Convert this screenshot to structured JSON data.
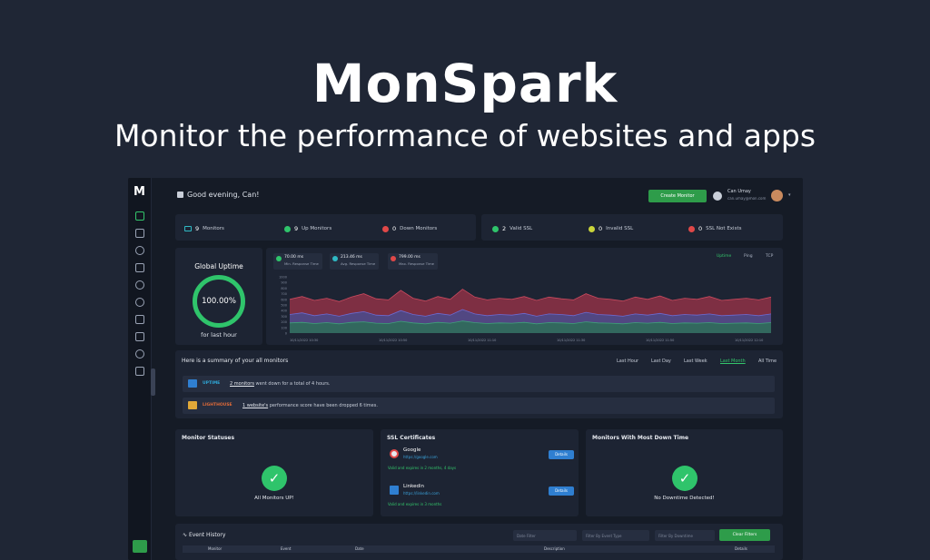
{
  "hero": {
    "title": "MonSpark",
    "subtitle": "Monitor the performance of websites and apps"
  },
  "sidebar": {
    "logo": "M",
    "icons": [
      "dashboard-icon",
      "monitor-icon",
      "signal-icon",
      "pen-icon",
      "user-icon",
      "globe-icon",
      "card-icon",
      "calendar-icon",
      "bell-icon",
      "list-icon"
    ]
  },
  "topbar": {
    "greeting": "Good evening, Can!",
    "create_button": "Create Monitor",
    "user_name": "Can Umay",
    "user_email": "can.umay@mon.com"
  },
  "stats": {
    "monitors": {
      "num": "9",
      "label": "Monitors"
    },
    "up": {
      "num": "9",
      "label": "Up Monitors"
    },
    "down": {
      "num": "0",
      "label": "Down Monitors"
    },
    "valid_ssl": {
      "num": "2",
      "label": "Valid SSL"
    },
    "invalid_ssl": {
      "num": "0",
      "label": "Invalid SSL"
    },
    "ssl_not_exists": {
      "num": "0",
      "label": "SSL Not Exists"
    }
  },
  "uptime": {
    "title": "Global Uptime",
    "value": "100.00%",
    "footer": "for last hour"
  },
  "response": {
    "min": {
      "value": "70.00 ms",
      "label": "Min. Response Time"
    },
    "avg": {
      "value": "213.46 ms",
      "label": "Avg. Response Time"
    },
    "max": {
      "value": "799.00 ms",
      "label": "Max. Response Time"
    },
    "tabs": [
      "Uptime",
      "Ping",
      "TCP"
    ]
  },
  "chart_data": {
    "type": "area",
    "series": [
      {
        "values": [
          600,
          650,
          580,
          620,
          560,
          640,
          700,
          610,
          590,
          760,
          620,
          570,
          650,
          600,
          780,
          640,
          590,
          620,
          600,
          650,
          580,
          640,
          610,
          590,
          700,
          620,
          600,
          570,
          640,
          600,
          660,
          580,
          620,
          600,
          650,
          580,
          600,
          620,
          590,
          640
        ]
      },
      {
        "values": [
          330,
          360,
          310,
          340,
          300,
          350,
          380,
          320,
          310,
          400,
          330,
          300,
          350,
          320,
          420,
          340,
          310,
          330,
          320,
          350,
          300,
          340,
          330,
          310,
          370,
          330,
          320,
          300,
          340,
          320,
          350,
          310,
          330,
          320,
          340,
          310,
          320,
          330,
          310,
          340
        ]
      },
      {
        "values": [
          180,
          190,
          170,
          185,
          165,
          190,
          200,
          175,
          170,
          210,
          180,
          165,
          190,
          175,
          215,
          185,
          170,
          180,
          175,
          190,
          165,
          185,
          180,
          170,
          200,
          180,
          175,
          165,
          185,
          175,
          190,
          170,
          180,
          175,
          185,
          170,
          175,
          180,
          170,
          185
        ]
      }
    ],
    "x_ticks": [
      "10/11/2022 10:30",
      "10/11/2022 10:50",
      "10/11/2022 11:10",
      "10/11/2022 11:30",
      "10/11/2022 11:50",
      "10/11/2022 12:10"
    ],
    "ylim": [
      0,
      1000
    ],
    "colors": [
      "#8a3145",
      "#4c4a8a",
      "#2f6b5a"
    ]
  },
  "summary": {
    "title": "Here is a summary of your all monitors",
    "tabs": [
      "Last Hour",
      "Last Day",
      "Last Week",
      "Last Month",
      "All Time"
    ],
    "uptime_row": {
      "type": "UPTIME",
      "link": "2 monitors",
      "text": " went down for a total of 4 hours."
    },
    "lighthouse_row": {
      "type": "LIGHTHOUSE",
      "link": "1 website's",
      "text": " performance score have been dropped 6 times."
    }
  },
  "monitor_statuses": {
    "title": "Monitor Statuses",
    "label": "All Monitors UP!"
  },
  "ssl": {
    "title": "SSL Certificates",
    "items": [
      {
        "name": "Google",
        "url": "https://google.com",
        "expires": "Valid and expires in 2 months, 4 days",
        "button": "Details"
      },
      {
        "name": "Linkedin",
        "url": "https://linkedin.com",
        "expires": "Valid and expires in 3 months",
        "button": "Details"
      }
    ]
  },
  "downtime": {
    "title": "Monitors With Most Down Time",
    "label": "No Downtime Detected!"
  },
  "events": {
    "title": "Event History",
    "filters": [
      "Date Filter",
      "Filter By Event Type",
      "Filter By Downtime"
    ],
    "clear_button": "Clear Filters",
    "columns": [
      "Monitor",
      "Event",
      "Date",
      "Description",
      "Details"
    ]
  }
}
